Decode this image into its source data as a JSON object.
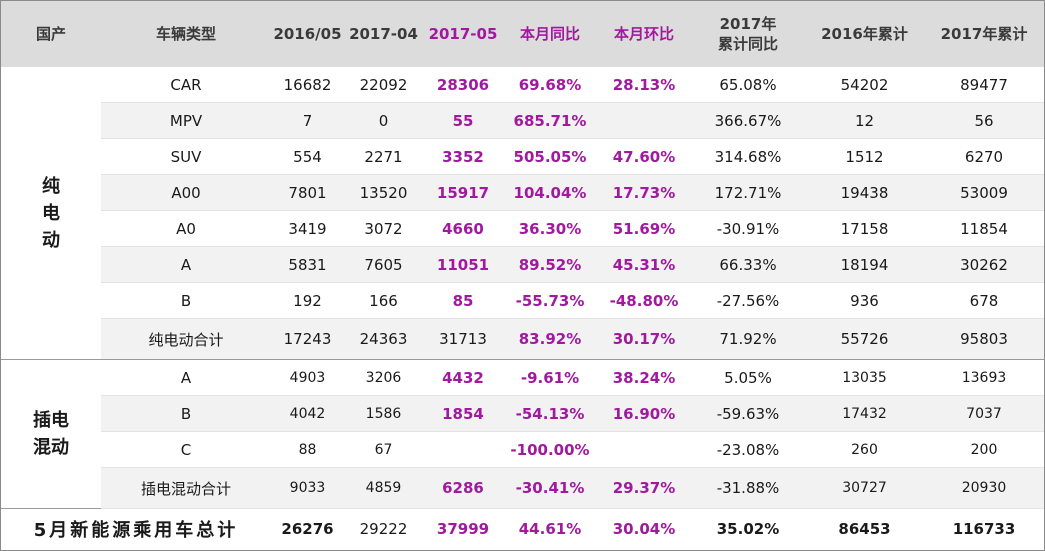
{
  "header": [
    "国产",
    "车辆类型",
    "2016/05",
    "2017-04",
    "2017-05",
    "本月同比",
    "本月环比",
    "2017年\n累计同比",
    "2016年累计",
    "2017年累计"
  ],
  "groups": {
    "ev": "纯\n电\n动",
    "phev": "插电\n混动"
  },
  "rows": [
    [
      "CAR",
      "16682",
      "22092",
      "28306",
      "69.68%",
      "28.13%",
      "65.08%",
      "54202",
      "89477"
    ],
    [
      "MPV",
      "7",
      "0",
      "55",
      "685.71%",
      "",
      "366.67%",
      "12",
      "56"
    ],
    [
      "SUV",
      "554",
      "2271",
      "3352",
      "505.05%",
      "47.60%",
      "314.68%",
      "1512",
      "6270"
    ],
    [
      "A00",
      "7801",
      "13520",
      "15917",
      "104.04%",
      "17.73%",
      "172.71%",
      "19438",
      "53009"
    ],
    [
      "A0",
      "3419",
      "3072",
      "4660",
      "36.30%",
      "51.69%",
      "-30.91%",
      "17158",
      "11854"
    ],
    [
      "A",
      "5831",
      "7605",
      "11051",
      "89.52%",
      "45.31%",
      "66.33%",
      "18194",
      "30262"
    ],
    [
      "B",
      "192",
      "166",
      "85",
      "-55.73%",
      "-48.80%",
      "-27.56%",
      "936",
      "678"
    ],
    [
      "纯电动合计",
      "17243",
      "24363",
      "31713",
      "83.92%",
      "30.17%",
      "71.92%",
      "55726",
      "95803"
    ],
    [
      "A",
      "4903",
      "3206",
      "4432",
      "-9.61%",
      "38.24%",
      "5.05%",
      "13035",
      "13693"
    ],
    [
      "B",
      "4042",
      "1586",
      "1854",
      "-54.13%",
      "16.90%",
      "-59.63%",
      "17432",
      "7037"
    ],
    [
      "C",
      "88",
      "67",
      "",
      "-100.00%",
      "",
      "-23.08%",
      "260",
      "200"
    ],
    [
      "插电混动合计",
      "9033",
      "4859",
      "6286",
      "-30.41%",
      "29.37%",
      "-31.88%",
      "30727",
      "20930"
    ]
  ],
  "total": [
    "5月新能源乘用车总计",
    "26276",
    "29222",
    "37999",
    "44.61%",
    "30.04%",
    "35.02%",
    "86453",
    "116733"
  ],
  "colors": {
    "highlight": "#a0199f",
    "header_bg": "#dcdcdc",
    "stripe_bg": "#f2f2f2"
  }
}
